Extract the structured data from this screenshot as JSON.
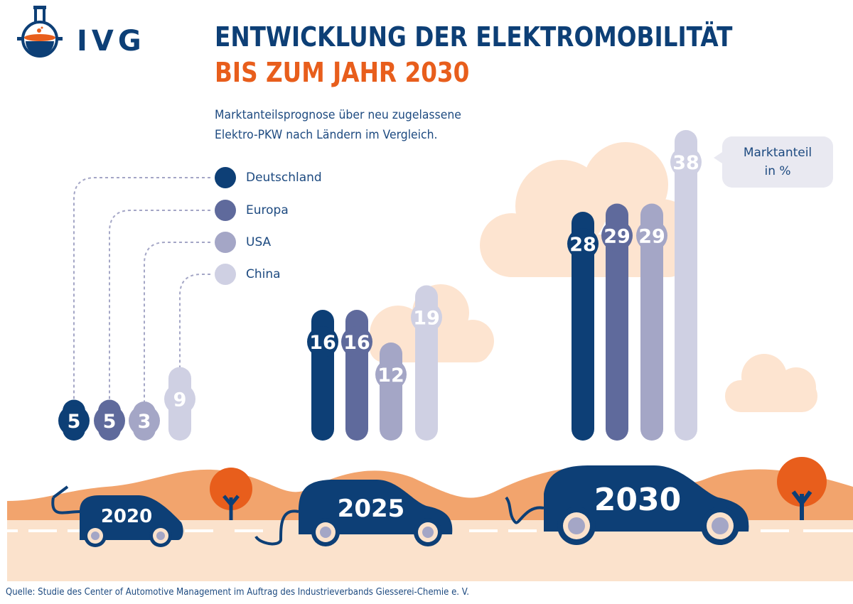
{
  "logo": {
    "text": "IVG"
  },
  "title_line1": "ENTWICKLUNG DER ELEKTROMOBILITÄT",
  "title_line2": "BIS ZUM JAHR 2030",
  "subtitle_line1": "Marktanteilsprognose über neu zugelassene",
  "subtitle_line2": "Elektro-PKW nach Ländern im Vergleich.",
  "callout_line1": "Marktanteil",
  "callout_line2": "in %",
  "source": "Quelle: Studie des Center of Automotive Management im Auftrag des Industrieverbands Giesserei-Chemie e. V.",
  "colors": {
    "navy": "#0d3f76",
    "orange": "#e85e1c",
    "hill": "#f2a46d",
    "cloud": "#fde4d0",
    "road": "#fbe2cc"
  },
  "chart_data": {
    "type": "bar",
    "categories": [
      "2020",
      "2025",
      "2030"
    ],
    "ylabel": "Marktanteil in %",
    "series": [
      {
        "name": "Deutschland",
        "color": "#0d3f76",
        "values": [
          5,
          16,
          28
        ]
      },
      {
        "name": "Europa",
        "color": "#5f6a9c",
        "values": [
          5,
          16,
          29
        ]
      },
      {
        "name": "USA",
        "color": "#a4a6c6",
        "values": [
          3,
          12,
          29
        ]
      },
      {
        "name": "China",
        "color": "#cfd0e3",
        "values": [
          9,
          19,
          38
        ]
      }
    ]
  }
}
